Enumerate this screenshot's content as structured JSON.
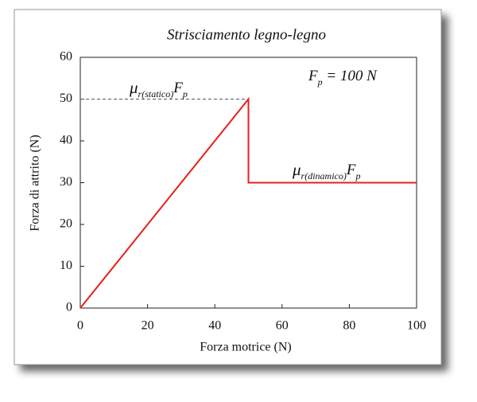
{
  "chart_data": {
    "type": "line",
    "title": "Strisciamento legno-legno",
    "xlabel": "Forza motrice (N)",
    "ylabel": "Forza di attrito (N)",
    "series": [
      {
        "color": "#e8201c",
        "x": [
          0,
          50,
          50,
          100
        ],
        "values": [
          0,
          50,
          30,
          30
        ]
      }
    ],
    "xlim": [
      0,
      100
    ],
    "xticks": [
      0,
      20,
      40,
      60,
      80,
      100
    ],
    "ylim": [
      0,
      60
    ],
    "yticks": [
      0,
      10,
      20,
      30,
      40,
      50,
      60
    ],
    "reference_line": {
      "y": 50,
      "x": [
        0,
        50
      ],
      "style": "dashed"
    },
    "annotations": [
      {
        "parts": [
          "μ",
          "r(statico)",
          "F",
          "p"
        ]
      },
      {
        "parts": [
          "F",
          "p",
          " = 100 N"
        ]
      },
      {
        "parts": [
          "μ",
          "r(dinamico)",
          "F",
          "p"
        ]
      }
    ]
  }
}
